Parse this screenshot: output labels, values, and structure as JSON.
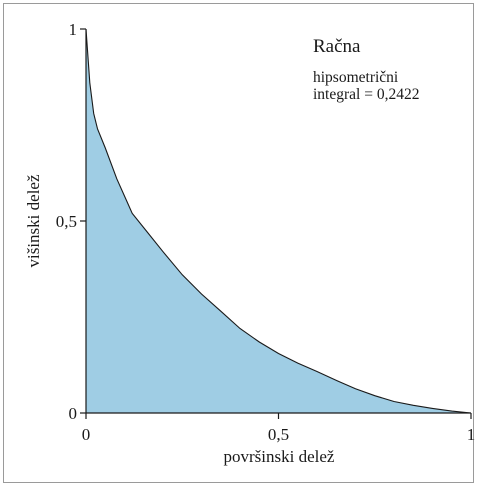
{
  "chart_data": {
    "type": "area",
    "title": "Račna",
    "annotation_lines": [
      "hipsometrični",
      "integral = 0,2422"
    ],
    "xlabel": "površinski delež",
    "ylabel": "višinski delež",
    "xlim": [
      0,
      1
    ],
    "ylim": [
      0,
      1
    ],
    "x_ticks": [
      0,
      0.5,
      1
    ],
    "x_tick_labels": [
      "0",
      "0,5",
      "1"
    ],
    "y_ticks": [
      0,
      0.5,
      1
    ],
    "y_tick_labels": [
      "0",
      "0,5",
      "1"
    ],
    "grid": false,
    "fill_color": "#9fcde4",
    "line_color": "#1a1a1a",
    "series": [
      {
        "x": [
          0,
          0.005,
          0.01,
          0.02,
          0.03,
          0.05,
          0.08,
          0.12,
          0.16,
          0.2,
          0.25,
          0.3,
          0.35,
          0.4,
          0.45,
          0.5,
          0.55,
          0.6,
          0.65,
          0.7,
          0.75,
          0.8,
          0.85,
          0.9,
          0.95,
          1.0
        ],
        "y": [
          1.0,
          0.93,
          0.86,
          0.78,
          0.74,
          0.69,
          0.61,
          0.52,
          0.47,
          0.42,
          0.36,
          0.31,
          0.265,
          0.22,
          0.185,
          0.155,
          0.13,
          0.108,
          0.085,
          0.063,
          0.045,
          0.03,
          0.02,
          0.012,
          0.005,
          0.0
        ]
      }
    ]
  }
}
